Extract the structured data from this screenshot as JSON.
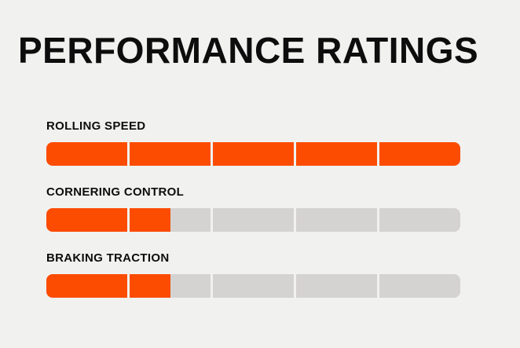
{
  "page": {
    "background_color": "#f1f1f0"
  },
  "chart_data": {
    "type": "bar",
    "orientation": "horizontal",
    "title": "PERFORMANCE RATINGS",
    "categories": [
      "ROLLING SPEED",
      "CORNERING CONTROL",
      "BRAKING TRACTION"
    ],
    "values": [
      5,
      1.5,
      1.5
    ],
    "value_max": 5,
    "segments_per_bar": 5,
    "grid": false,
    "legend": false,
    "colors": {
      "filled": "#fc4c02",
      "empty": "#d5d3d1",
      "text": "#0d0d0d",
      "background": "#f1f1f0"
    }
  }
}
